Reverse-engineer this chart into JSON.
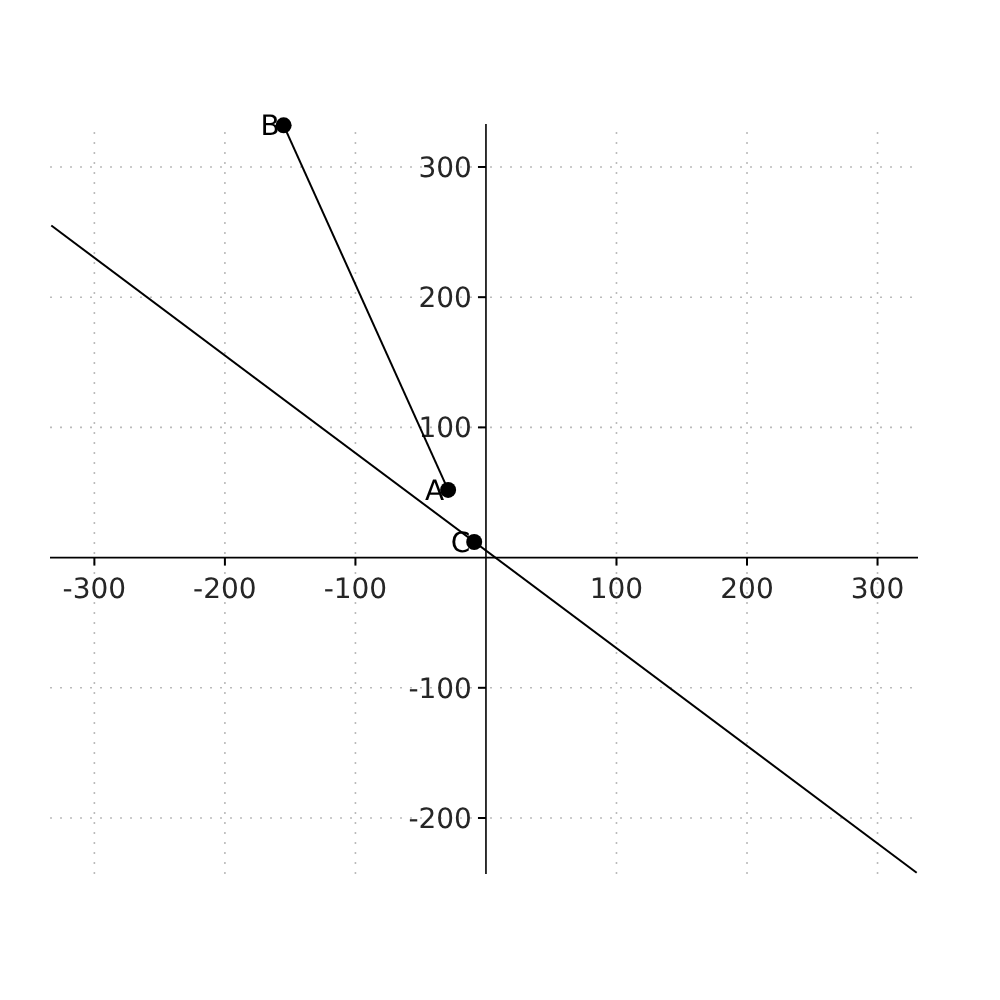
{
  "chart_data": {
    "type": "line",
    "xlim": [
      -334,
      331
    ],
    "ylim": [
      -243,
      333
    ],
    "xticks": [
      -300,
      -200,
      -100,
      100,
      200,
      300
    ],
    "yticks": [
      -200,
      -100,
      100,
      200,
      300
    ],
    "grid": true,
    "series": [
      {
        "color": "#000000",
        "x": [
          -333,
          330
        ],
        "values": [
          255,
          -242
        ]
      },
      {
        "color": "#000000",
        "x": [
          -155,
          -29
        ],
        "values": [
          332,
          52
        ]
      },
      {
        "type": "scatter",
        "color": "#000000",
        "x": [
          -29,
          -155,
          -9
        ],
        "values": [
          52,
          332,
          12
        ],
        "marker": "circle"
      }
    ],
    "annotations": [
      {
        "text": "A",
        "x": -29,
        "y": 52
      },
      {
        "text": "B",
        "x": -155,
        "y": 332
      },
      {
        "text": "C",
        "x": -9,
        "y": 12
      }
    ]
  }
}
